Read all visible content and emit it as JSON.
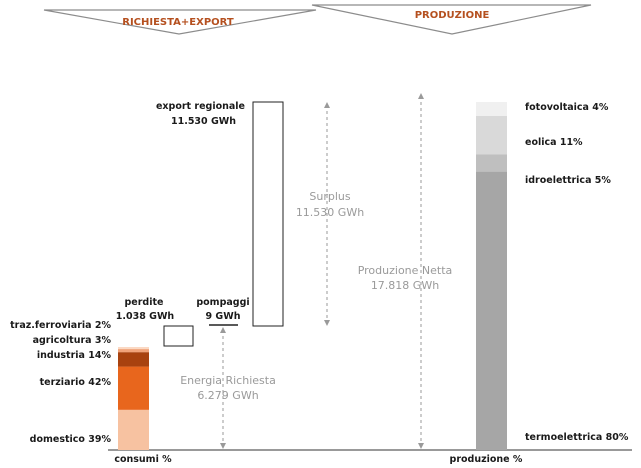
{
  "headers": {
    "left": "RICHIESTA+EXPORT",
    "right": "PRODUZIONE"
  },
  "colors": {
    "header_text": "#b5501f",
    "domestico": "#f7c2a1",
    "terziario": "#e8661d",
    "industria": "#a8420f",
    "agricoltura": "#f0a37a",
    "traz_ferroviaria": "#fbd9c4",
    "termoelettrica": "#a6a6a6",
    "idroelettrica": "#bfbfbf",
    "eolica": "#d9d9d9",
    "fotovoltaica": "#f0f0f0"
  },
  "labels": {
    "export_line1": "export regionale",
    "export_line2": "11.530 GWh",
    "surplus_line1": "Surplus",
    "surplus_line2": "11.530 GWh",
    "produzione_line1": "Produzione Netta",
    "produzione_line2": "17.818 GWh",
    "perdite_line1": "perdite",
    "perdite_line2": "1.038 GWh",
    "pompaggi_line1": "pompaggi",
    "pompaggi_line2": "9 GWh",
    "richiesta_line1": "Energia Richiesta",
    "richiesta_line2": "6.279 GWh"
  },
  "chart_data": {
    "type": "bar",
    "title": "",
    "unit": "GWh",
    "flows": [
      {
        "name": "Energia Richiesta",
        "value": 6279
      },
      {
        "name": "perdite",
        "value": 1038
      },
      {
        "name": "pompaggi",
        "value": 9
      },
      {
        "name": "export regionale",
        "value": 11530
      },
      {
        "name": "Surplus",
        "value": 11530
      },
      {
        "name": "Produzione Netta",
        "value": 17818
      }
    ],
    "consumi": {
      "xlabel": "consumi %",
      "segments": [
        {
          "key": "domestico",
          "label": "domestico 39%",
          "value": 39
        },
        {
          "key": "terziario",
          "label": "terziario 42%",
          "value": 42
        },
        {
          "key": "industria",
          "label": "industria 14%",
          "value": 14
        },
        {
          "key": "agricoltura",
          "label": "agricoltura 3%",
          "value": 3
        },
        {
          "key": "traz_ferroviaria",
          "label": "traz.ferroviaria 2%",
          "value": 2
        }
      ]
    },
    "produzione": {
      "xlabel": "produzione %",
      "segments": [
        {
          "key": "termoelettrica",
          "label": "termoelettrica 80%",
          "value": 80
        },
        {
          "key": "idroelettrica",
          "label": "idroelettrica 5%",
          "value": 5
        },
        {
          "key": "eolica",
          "label": "eolica 11%",
          "value": 11
        },
        {
          "key": "fotovoltaica",
          "label": "fotovoltaica 4%",
          "value": 4
        }
      ]
    }
  }
}
